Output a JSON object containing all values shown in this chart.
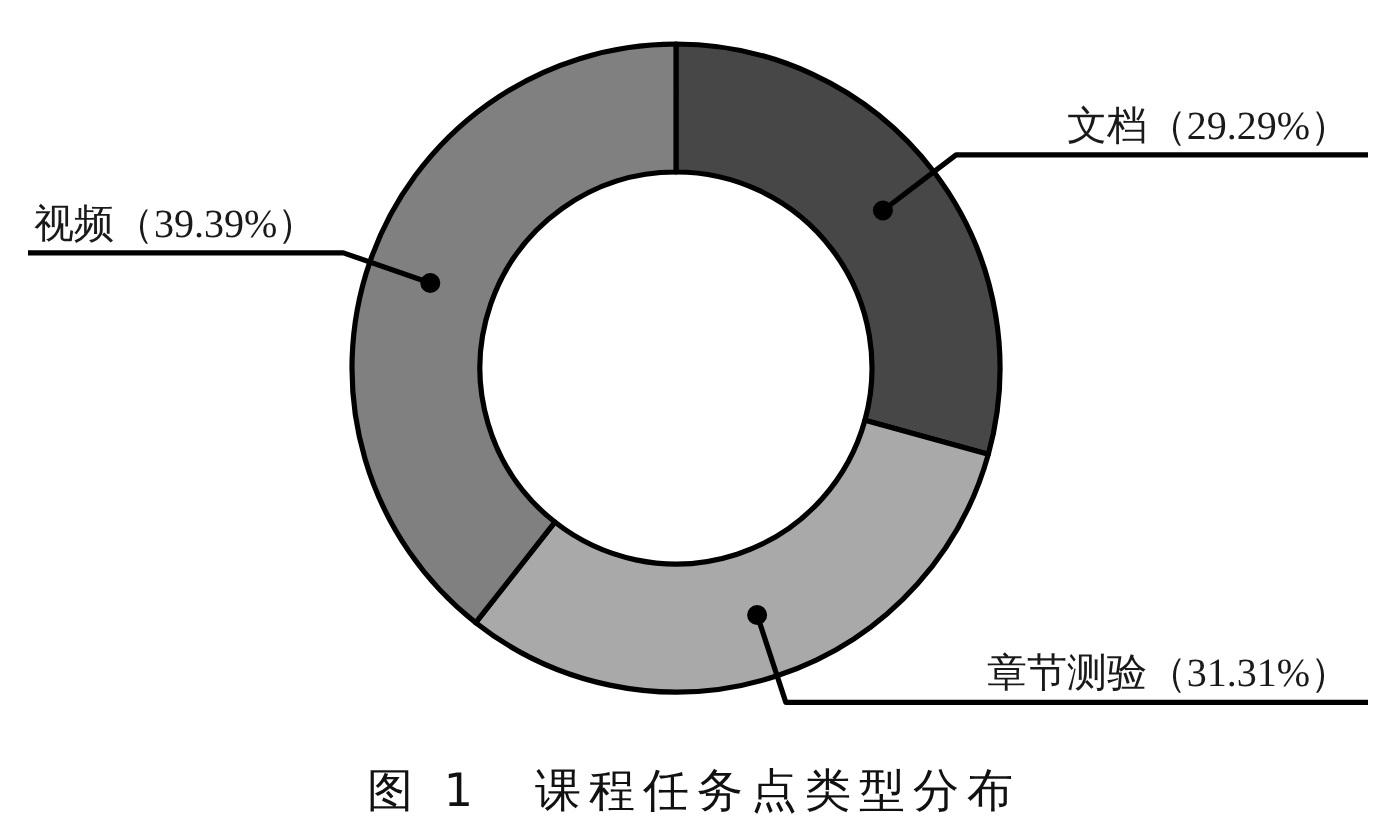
{
  "chart_data": {
    "type": "donut",
    "title": "图 1　课程任务点类型分布",
    "categories": [
      "文档",
      "章节测验",
      "视频"
    ],
    "values": [
      29.29,
      31.31,
      39.39
    ],
    "value_labels": [
      "（29.29%）",
      "（31.31%）",
      "（39.39%）"
    ],
    "colors": [
      "#474747",
      "#a9a9a9",
      "#808080"
    ]
  }
}
